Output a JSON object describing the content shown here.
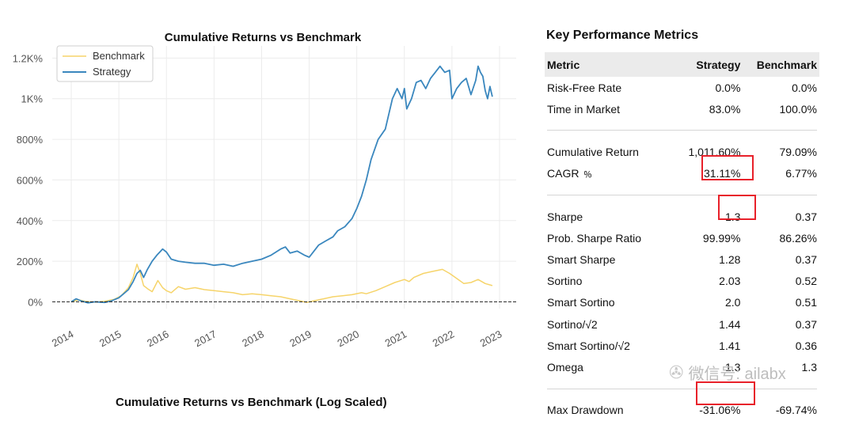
{
  "chart_data": {
    "type": "line",
    "title": "Cumulative Returns vs Benchmark",
    "xlabel": "",
    "ylabel": "",
    "x_ticks": [
      "2014",
      "2015",
      "2016",
      "2017",
      "2018",
      "2019",
      "2020",
      "2021",
      "2022",
      "2023"
    ],
    "y_ticks": [
      "0%",
      "200%",
      "400%",
      "600%",
      "800%",
      "1K%",
      "1.2K%"
    ],
    "ylim": [
      -10,
      1260
    ],
    "xlim": [
      2013.6,
      2023.35
    ],
    "legend": [
      "Benchmark",
      "Strategy"
    ],
    "legend_position": "upper-left",
    "series": [
      {
        "name": "Benchmark",
        "color": "#f6d46a",
        "x": [
          2014.0,
          2014.15,
          2014.3,
          2014.5,
          2014.7,
          2014.9,
          2015.05,
          2015.2,
          2015.3,
          2015.38,
          2015.45,
          2015.52,
          2015.6,
          2015.7,
          2015.82,
          2015.92,
          2016.0,
          2016.1,
          2016.25,
          2016.4,
          2016.6,
          2016.8,
          2017.0,
          2017.2,
          2017.4,
          2017.6,
          2017.8,
          2018.0,
          2018.2,
          2018.4,
          2018.6,
          2018.8,
          2018.95,
          2019.1,
          2019.3,
          2019.5,
          2019.7,
          2019.9,
          2020.1,
          2020.2,
          2020.4,
          2020.6,
          2020.8,
          2021.0,
          2021.1,
          2021.2,
          2021.4,
          2021.6,
          2021.8,
          2021.95,
          2022.1,
          2022.25,
          2022.4,
          2022.55,
          2022.7,
          2022.85
        ],
        "values": [
          0,
          10,
          2,
          -2,
          3,
          12,
          30,
          70,
          120,
          185,
          140,
          80,
          65,
          50,
          105,
          70,
          55,
          45,
          75,
          62,
          70,
          60,
          55,
          50,
          45,
          35,
          40,
          35,
          30,
          25,
          15,
          5,
          -3,
          5,
          15,
          25,
          30,
          35,
          45,
          40,
          55,
          75,
          95,
          110,
          100,
          120,
          140,
          150,
          160,
          140,
          115,
          90,
          95,
          110,
          90,
          80
        ]
      },
      {
        "name": "Strategy",
        "color": "#3a87be",
        "x": [
          2014.0,
          2014.1,
          2014.2,
          2014.35,
          2014.5,
          2014.7,
          2014.85,
          2015.0,
          2015.1,
          2015.2,
          2015.3,
          2015.38,
          2015.45,
          2015.52,
          2015.6,
          2015.7,
          2015.8,
          2015.92,
          2016.0,
          2016.1,
          2016.25,
          2016.4,
          2016.6,
          2016.8,
          2017.0,
          2017.2,
          2017.4,
          2017.6,
          2017.8,
          2018.0,
          2018.2,
          2018.4,
          2018.5,
          2018.6,
          2018.75,
          2018.9,
          2019.0,
          2019.1,
          2019.2,
          2019.35,
          2019.5,
          2019.6,
          2019.75,
          2019.9,
          2020.0,
          2020.1,
          2020.2,
          2020.3,
          2020.45,
          2020.6,
          2020.75,
          2020.85,
          2020.95,
          2021.0,
          2021.05,
          2021.15,
          2021.25,
          2021.35,
          2021.45,
          2021.55,
          2021.65,
          2021.75,
          2021.85,
          2021.95,
          2022.0,
          2022.1,
          2022.2,
          2022.3,
          2022.4,
          2022.5,
          2022.55,
          2022.6,
          2022.65,
          2022.7,
          2022.75,
          2022.8,
          2022.85
        ],
        "values": [
          0,
          15,
          5,
          -5,
          0,
          -3,
          5,
          20,
          40,
          60,
          100,
          140,
          155,
          120,
          160,
          200,
          230,
          260,
          245,
          210,
          200,
          195,
          190,
          190,
          180,
          185,
          175,
          190,
          200,
          210,
          230,
          260,
          270,
          240,
          250,
          230,
          220,
          250,
          280,
          300,
          320,
          350,
          370,
          410,
          460,
          520,
          600,
          700,
          800,
          850,
          1000,
          1050,
          1000,
          1050,
          950,
          1000,
          1080,
          1090,
          1050,
          1100,
          1130,
          1160,
          1130,
          1140,
          1000,
          1050,
          1080,
          1100,
          1020,
          1090,
          1160,
          1130,
          1110,
          1040,
          1000,
          1060,
          1010
        ]
      }
    ]
  },
  "metrics": {
    "title": "Key Performance Metrics",
    "headers": {
      "metric": "Metric",
      "strategy": "Strategy",
      "benchmark": "Benchmark"
    },
    "rows": [
      {
        "name": "Risk-Free Rate",
        "strategy": "0.0%",
        "benchmark": "0.0%"
      },
      {
        "name": "Time in Market",
        "strategy": "83.0%",
        "benchmark": "100.0%"
      },
      {
        "name": "Cumulative Return",
        "strategy": "1,011.60%",
        "benchmark": "79.09%"
      },
      {
        "name": "CAGR ﹪",
        "strategy": "31.11%",
        "benchmark": "6.77%"
      },
      {
        "name": "Sharpe",
        "strategy": "1.3",
        "benchmark": "0.37"
      },
      {
        "name": "Prob. Sharpe Ratio",
        "strategy": "99.99%",
        "benchmark": "86.26%"
      },
      {
        "name": "Smart Sharpe",
        "strategy": "1.28",
        "benchmark": "0.37"
      },
      {
        "name": "Sortino",
        "strategy": "2.03",
        "benchmark": "0.52"
      },
      {
        "name": "Smart Sortino",
        "strategy": "2.0",
        "benchmark": "0.51"
      },
      {
        "name": "Sortino/√2",
        "strategy": "1.44",
        "benchmark": "0.37"
      },
      {
        "name": "Smart Sortino/√2",
        "strategy": "1.41",
        "benchmark": "0.36"
      },
      {
        "name": "Omega",
        "strategy": "1.3",
        "benchmark": "1.3"
      },
      {
        "name": "Max Drawdown",
        "strategy": "-31.06%",
        "benchmark": "-69.74%"
      }
    ]
  },
  "watermark": {
    "text": "微信号: ailabx",
    "icon": "wechat-icon"
  },
  "bottom_chart": {
    "title": "Cumulative Returns vs Benchmark (Log Scaled)"
  },
  "colors": {
    "highlight": "#e8212a",
    "header_bg": "#ebebeb"
  }
}
